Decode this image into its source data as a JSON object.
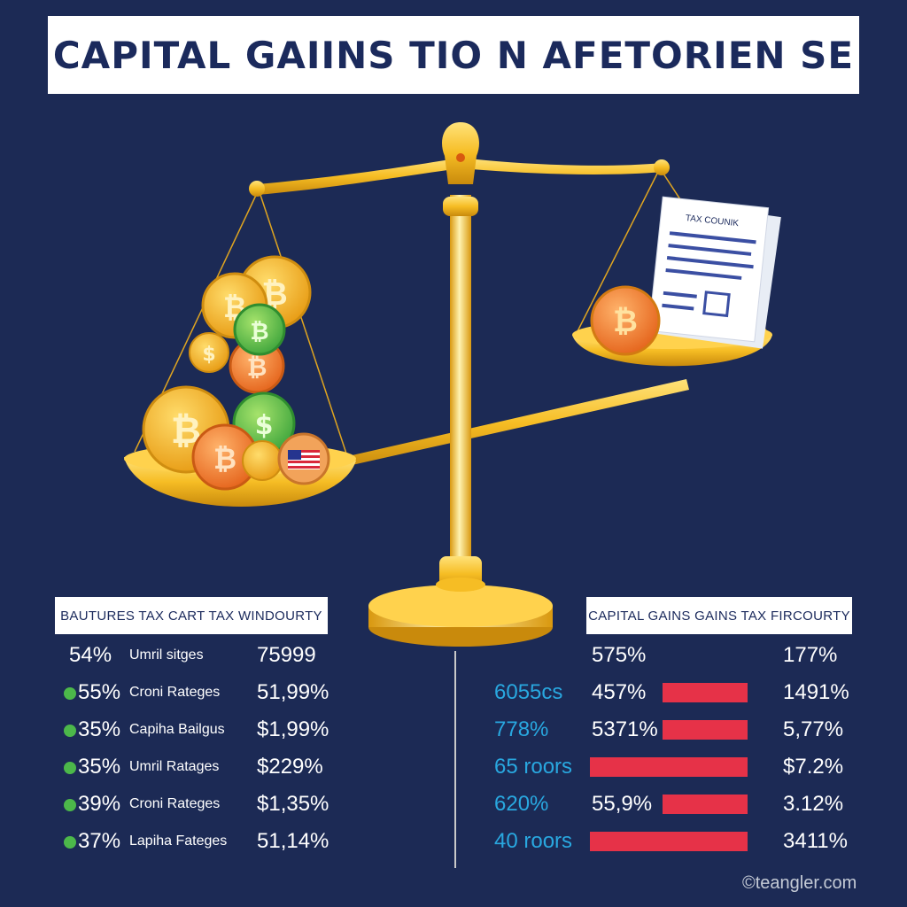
{
  "title": "CAPITAL GAIINS TIO N AFETORIEN SE",
  "document": {
    "heading": "TAX COUNIK"
  },
  "left_panel": {
    "header": "BAUTURES TAX CART TAX WINDOURTY",
    "rows": [
      {
        "dot": false,
        "pct": "54%",
        "label": "Umril sitges",
        "value": "75999"
      },
      {
        "dot": true,
        "pct": "55%",
        "label": "Croni Rateges",
        "value": "51,99%"
      },
      {
        "dot": true,
        "pct": "35%",
        "label": "Capiha Bailgus",
        "value": "$1,99%"
      },
      {
        "dot": true,
        "pct": "35%",
        "label": "Umril Ratages",
        "value": "$229%"
      },
      {
        "dot": true,
        "pct": "39%",
        "label": "Croni Rateges",
        "value": "$1,35%"
      },
      {
        "dot": true,
        "pct": "37%",
        "label": "Lapiha Fateges",
        "value": "51,14%"
      }
    ]
  },
  "right_panel": {
    "header": "CAPITAL GAINS GAINS TAX FIRCOURTY",
    "rows": [
      {
        "left": "",
        "mid": "575%",
        "bar": "none",
        "right": "177%"
      },
      {
        "left": "6055cs",
        "mid": "457%",
        "bar": "short",
        "right": "1491%"
      },
      {
        "left": "778%",
        "mid": "5371%",
        "bar": "short",
        "right": "5,77%"
      },
      {
        "left": "65 roors",
        "mid": "",
        "bar": "long",
        "right": "$7.2%"
      },
      {
        "left": "620%",
        "mid": "55,9%",
        "bar": "short",
        "right": "3.12%"
      },
      {
        "left": "40 roors",
        "mid": "",
        "bar": "long",
        "right": "3411%"
      }
    ]
  },
  "watermark": "©teangler.com",
  "colors": {
    "background": "#1c2a55",
    "title_text": "#1b2a5c",
    "gold": "#f2b51c",
    "bar_red": "#e63248",
    "accent_blue": "#29a8e0",
    "dot_green": "#4cb84a"
  },
  "icons": [
    "bitcoin-coin-icon",
    "dollar-coin-icon",
    "us-flag-coin-icon",
    "tax-document-icon",
    "balance-scale-icon"
  ]
}
